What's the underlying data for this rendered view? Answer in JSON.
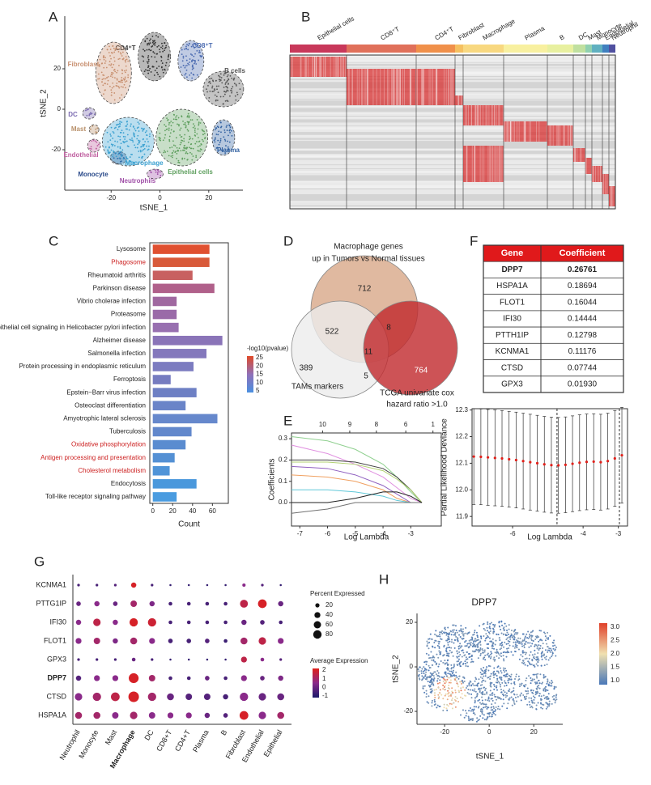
{
  "chart_data": [
    {
      "panel": "A",
      "type": "scatter",
      "xlabel": "tSNE_1",
      "ylabel": "tSNE_2",
      "xlim": [
        -39,
        34
      ],
      "ylim": [
        -40,
        46
      ],
      "xticks": [
        -20,
        0,
        20
      ],
      "yticks": [
        -20,
        0,
        20
      ],
      "series": [
        {
          "name": "CD4⁺T",
          "color": "#333333",
          "x": [
            -2.3
          ],
          "values": [
            26
          ]
        },
        {
          "name": "CD8⁺T",
          "color": "#4a6ab0",
          "x": [
            12.7
          ],
          "values": [
            24
          ]
        },
        {
          "name": "B cells",
          "color": "#555555",
          "x": [
            26
          ],
          "values": [
            10
          ]
        },
        {
          "name": "Fibroblast",
          "color": "#c89070",
          "x": [
            -19
          ],
          "values": [
            18
          ]
        },
        {
          "name": "DC",
          "color": "#7a6ab0",
          "x": [
            -29
          ],
          "values": [
            -2
          ]
        },
        {
          "name": "Mast",
          "color": "#b8906a",
          "x": [
            -27
          ],
          "values": [
            -10
          ]
        },
        {
          "name": "Endothelial",
          "color": "#c060a0",
          "x": [
            -27
          ],
          "values": [
            -18
          ]
        },
        {
          "name": "Monocyte",
          "color": "#2a4a8a",
          "x": [
            -17
          ],
          "values": [
            -24
          ]
        },
        {
          "name": "Macrophage",
          "color": "#3aa0d0",
          "x": [
            -13
          ],
          "values": [
            -16
          ]
        },
        {
          "name": "Neutrophils",
          "color": "#a050a8",
          "x": [
            -2
          ],
          "values": [
            -32
          ]
        },
        {
          "name": "Epithelial cells",
          "color": "#60a060",
          "x": [
            9
          ],
          "values": [
            -14
          ]
        },
        {
          "name": "Plasma",
          "color": "#3060a0",
          "x": [
            26
          ],
          "values": [
            -14
          ]
        }
      ]
    },
    {
      "panel": "B",
      "type": "heatmap",
      "categories": [
        "Epithelial cells",
        "CD8⁺T",
        "CD4⁺T",
        "Fibroblast",
        "Macrophage",
        "Plasma",
        "B",
        "DC",
        "Mast",
        "Monocyte",
        "Endothelial",
        "Neutrophil"
      ],
      "colors": [
        "#c8385a",
        "#e0705a",
        "#f0904a",
        "#f5c060",
        "#f8d880",
        "#f8f0a0",
        "#e8f0a0",
        "#c0e0a0",
        "#90d0b0",
        "#60b0c0",
        "#4080c0",
        "#5050a0"
      ]
    },
    {
      "panel": "C",
      "type": "barh",
      "xlabel": "Count",
      "xlim": [
        -3,
        76
      ],
      "xticks": [
        0,
        20,
        40,
        60
      ],
      "categories": [
        "Lysosome",
        "Phagosome",
        "Rheumatoid arthritis",
        "Parkinson disease",
        "Vibrio cholerae infection",
        "Proteasome",
        "Epithelial cell signaling in Helicobacter pylori infection",
        "Alzheimer disease",
        "Salmonella infection",
        "Protein processing in endoplasmic reticulum",
        "Ferroptosis",
        "Epstein−Barr virus infection",
        "Osteoclast differentiation",
        "Amyotrophic lateral sclerosis",
        "Tuberculosis",
        "Oxidative phosphorylation",
        "Antigen processing and presentation",
        "Cholesterol metabolism",
        "Endocytosis",
        "Toll-like receptor signaling pathway"
      ],
      "values": [
        57,
        57,
        40,
        62,
        24,
        24,
        26,
        70,
        54,
        41,
        18,
        44,
        33,
        65,
        39,
        33,
        22,
        17,
        44,
        24
      ],
      "colors": [
        "#e05030",
        "#d85a3a",
        "#c86060",
        "#b0608a",
        "#a068a0",
        "#9a6aa8",
        "#9870b0",
        "#8a74b8",
        "#8478bc",
        "#7c7cc0",
        "#767cc0",
        "#6e80c4",
        "#6a84c8",
        "#6688cc",
        "#6288cc",
        "#5a8cd0",
        "#5490d4",
        "#5094d8",
        "#4a98dc",
        "#4a9ce0"
      ],
      "label_colors": [
        "#222222",
        "#cc1f1f",
        "#222222",
        "#222222",
        "#222222",
        "#222222",
        "#222222",
        "#222222",
        "#222222",
        "#222222",
        "#222222",
        "#222222",
        "#222222",
        "#222222",
        "#222222",
        "#cc1f1f",
        "#cc1f1f",
        "#cc1f1f",
        "#222222",
        "#222222"
      ],
      "colorbar": {
        "title": "-log10(pvalue)",
        "lim": [
          4,
          26
        ],
        "ticks": [
          5,
          10,
          15,
          20,
          25
        ],
        "colors": [
          "#4a90e0",
          "#9070b8",
          "#e04a28"
        ]
      }
    },
    {
      "panel": "D",
      "type": "venn",
      "sets": [
        {
          "label": [
            "Macrophage genes",
            "up in Tumors vs Normal tissues"
          ],
          "color": "#d8a888"
        },
        {
          "label": [
            "TAMs markers"
          ],
          "color": "#ececec"
        },
        {
          "label": [
            "TCGA univariate cox",
            "hazard ratio >1.0"
          ],
          "color": "#c0282c"
        }
      ],
      "regions": {
        "A": 712,
        "AB": 522,
        "AC": 8,
        "ABC": 11,
        "B": 389,
        "BC": 5,
        "C": 764
      }
    },
    {
      "panel": "E",
      "type": "line",
      "xlabel": "Log Lambda",
      "ylabel": "Coefficients",
      "xlim": [
        -7.3,
        -1.9
      ],
      "ylim": [
        -0.11,
        0.327
      ],
      "xticks": [
        -7,
        -6,
        -5,
        -4,
        -3
      ],
      "yticks": [
        {
          "value": 0,
          "label": "0.0"
        },
        0.1,
        0.2,
        0.3
      ],
      "x2ticks": [
        {
          "value": -6.18,
          "label": "10"
        },
        {
          "value": -5.2,
          "label": "9"
        },
        {
          "value": -4.24,
          "label": "8"
        },
        {
          "value": -3.18,
          "label": "6"
        },
        {
          "value": -2.2,
          "label": "1"
        }
      ],
      "x": [
        -7.3,
        -6,
        -5,
        -4,
        -3.5,
        -3,
        -2.6
      ],
      "series": [
        {
          "color": "#90d090",
          "values": [
            0.31,
            0.29,
            0.25,
            0.18,
            0.12,
            0.05,
            0
          ]
        },
        {
          "color": "#e090e0",
          "values": [
            0.27,
            0.23,
            0.18,
            0.12,
            0.07,
            0.02,
            0
          ]
        },
        {
          "color": "#404040",
          "values": [
            0.2,
            0.2,
            0.19,
            0.16,
            0.12,
            0.06,
            0
          ]
        },
        {
          "color": "#b0d070",
          "values": [
            0.19,
            0.19,
            0.18,
            0.15,
            0.11,
            0.06,
            0
          ]
        },
        {
          "color": "#9060c0",
          "values": [
            0.17,
            0.16,
            0.13,
            0.08,
            0.04,
            0,
            0
          ]
        },
        {
          "color": "#f0a060",
          "values": [
            0.13,
            0.12,
            0.1,
            0.06,
            0.02,
            0,
            0
          ]
        },
        {
          "color": "#60c8d8",
          "values": [
            0.06,
            0.06,
            0.05,
            0.03,
            0.01,
            0,
            0
          ]
        },
        {
          "color": "#707070",
          "values": [
            -0.05,
            -0.03,
            0,
            0,
            0,
            0,
            0
          ]
        },
        {
          "color": "#202020",
          "values": [
            0,
            0,
            0.02,
            0.05,
            0.05,
            0.03,
            0
          ]
        }
      ]
    },
    {
      "type": "errorbar",
      "xlabel": "Log Lambda",
      "ylabel": "Partial Likelihood Deviance",
      "xlim": [
        -7.15,
        -2.74
      ],
      "ylim": [
        11.864,
        12.305
      ],
      "xticks": [
        -6,
        -4,
        -3
      ],
      "yticks": [
        11.9,
        {
          "value": 12,
          "label": "12.0"
        },
        12.1,
        12.2,
        12.3
      ],
      "color": "#e0201a",
      "vlines": [
        -4.74,
        -2.97
      ],
      "x": [
        -7.1,
        -6.9,
        -6.7,
        -6.5,
        -6.3,
        -6.1,
        -5.9,
        -5.7,
        -5.5,
        -5.3,
        -5.1,
        -4.9,
        -4.7,
        -4.5,
        -4.3,
        -4.1,
        -3.9,
        -3.7,
        -3.5,
        -3.3,
        -3.1,
        -2.9
      ],
      "values": [
        12.125,
        12.124,
        12.122,
        12.12,
        12.118,
        12.115,
        12.112,
        12.108,
        12.104,
        12.1,
        12.096,
        12.093,
        12.092,
        12.094,
        12.098,
        12.102,
        12.105,
        12.106,
        12.104,
        12.108,
        12.118,
        12.13
      ],
      "errors": [
        0.18,
        0.18,
        0.18,
        0.18,
        0.18,
        0.18,
        0.18,
        0.18,
        0.18,
        0.18,
        0.18,
        0.18,
        0.18,
        0.18,
        0.18,
        0.18,
        0.18,
        0.18,
        0.18,
        0.18,
        0.18,
        0.18
      ]
    },
    {
      "panel": "F",
      "type": "table",
      "header_color": "#e0191b",
      "columns": [
        "Gene",
        "Coefficient"
      ],
      "rows": [
        [
          "DPP7",
          "0.26761"
        ],
        [
          "HSPA1A",
          "0.18694"
        ],
        [
          "FLOT1",
          "0.16044"
        ],
        [
          "IFI30",
          "0.14444"
        ],
        [
          "PTTH1IP",
          "0.12798"
        ],
        [
          "KCNMA1",
          "0.11176"
        ],
        [
          "CTSD",
          "0.07744"
        ],
        [
          "GPX3",
          "0.01930"
        ]
      ]
    },
    {
      "panel": "G",
      "type": "dotplot",
      "genes": [
        "KCNMA1",
        "PTTG1IP",
        "IFI30",
        "FLOT1",
        "GPX3",
        "DPP7",
        "CTSD",
        "HSPA1A"
      ],
      "categories": [
        "Neutrophil",
        "Monocyte",
        "Mast",
        "Macrophage",
        "DC",
        "CD8+T",
        "CD4+T",
        "Plasma",
        "B",
        "Fibroblast",
        "Endothelial",
        "Epithelial"
      ],
      "bold": [
        "DPP7",
        "Macrophage"
      ],
      "percent": [
        [
          5,
          5,
          5,
          20,
          5,
          3,
          3,
          3,
          3,
          8,
          5,
          3
        ],
        [
          15,
          20,
          15,
          30,
          20,
          10,
          10,
          10,
          10,
          45,
          55,
          20
        ],
        [
          20,
          40,
          20,
          50,
          50,
          10,
          10,
          10,
          10,
          20,
          15,
          10
        ],
        [
          25,
          30,
          20,
          35,
          25,
          15,
          15,
          15,
          10,
          35,
          40,
          25
        ],
        [
          5,
          5,
          5,
          10,
          5,
          3,
          3,
          3,
          3,
          25,
          10,
          5
        ],
        [
          20,
          25,
          25,
          70,
          30,
          10,
          10,
          15,
          10,
          25,
          15,
          20
        ],
        [
          40,
          50,
          55,
          80,
          50,
          35,
          30,
          30,
          20,
          50,
          40,
          35
        ],
        [
          35,
          35,
          30,
          40,
          30,
          25,
          25,
          20,
          15,
          55,
          40,
          35
        ]
      ],
      "values": [
        [
          -0.5,
          -0.5,
          -0.3,
          2,
          -0.5,
          -0.8,
          -0.8,
          -0.8,
          -0.8,
          0.5,
          -0.3,
          -0.8
        ],
        [
          0,
          0.5,
          0,
          1,
          0.3,
          -0.5,
          -0.5,
          -0.5,
          -0.5,
          1.5,
          2,
          0
        ],
        [
          0.5,
          1.5,
          0.5,
          2,
          1.8,
          -0.5,
          -0.5,
          -0.5,
          -0.5,
          0,
          -0.3,
          -0.5
        ],
        [
          0.5,
          1,
          0.3,
          1,
          0.5,
          -0.5,
          -0.5,
          -0.3,
          -0.7,
          1,
          1.5,
          0.5
        ],
        [
          -0.5,
          -0.5,
          -0.5,
          0,
          -0.5,
          -0.8,
          -0.8,
          -0.8,
          -0.8,
          1.5,
          0.5,
          -0.3
        ],
        [
          -0.3,
          0.5,
          0.5,
          2,
          1,
          -0.5,
          -0.5,
          0,
          -0.5,
          0.5,
          0,
          0.3
        ],
        [
          0.5,
          1,
          1.5,
          2,
          1,
          0,
          -0.3,
          -0.3,
          -0.5,
          0.5,
          0,
          0
        ],
        [
          1,
          1,
          0.5,
          1,
          0.5,
          0.5,
          0.5,
          0,
          -0.3,
          2,
          0.5,
          1
        ]
      ],
      "size_legend": {
        "title": "Percent Expressed",
        "ticks": [
          20,
          40,
          60,
          80
        ]
      },
      "color_legend": {
        "title": "Average Expression",
        "lim": [
          -1.2,
          2.2
        ],
        "ticks": [
          -1,
          0,
          1,
          2
        ],
        "colors": [
          "#1a1a6a",
          "#8a2a8a",
          "#e0201a"
        ]
      }
    },
    {
      "panel": "H",
      "type": "feature",
      "title": "DPP7",
      "xlabel": "tSNE_1",
      "ylabel": "tSNE_2",
      "xlim": [
        -32.4,
        33
      ],
      "ylim": [
        -25.8,
        24
      ],
      "xticks": [
        -20,
        0,
        20
      ],
      "yticks": [
        -20,
        0,
        20
      ],
      "colorbar": {
        "lim": [
          0.85,
          3.15
        ],
        "ticks": [
          {
            "value": 1,
            "label": "1.0"
          },
          1.5,
          {
            "value": 2,
            "label": "2.0"
          },
          2.5,
          {
            "value": 3,
            "label": "3.0"
          }
        ],
        "colors": [
          "#4a78b8",
          "#f0e0b0",
          "#e0402a"
        ]
      }
    }
  ]
}
